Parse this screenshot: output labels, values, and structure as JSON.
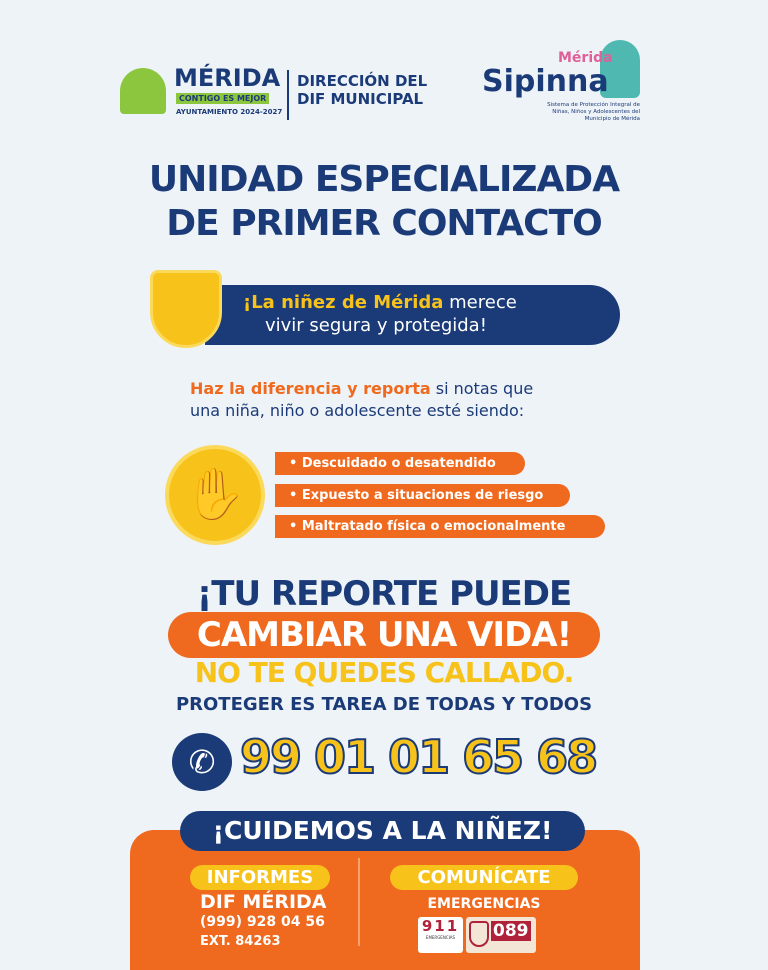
{
  "logos": {
    "merida": "MÉRIDA",
    "merida_tag": "CONTIGO ES MEJOR",
    "ayuntamiento": "AYUNTAMIENTO 2024-2027",
    "dif_line1": "DIRECCIÓN DEL",
    "dif_line2": "DIF MUNICIPAL",
    "sipinna_city": "Mérida",
    "sipinna": "Sipinna",
    "sipinna_desc": "Sistema de Protección Integral de Niñas, Niños y Adolescentes del Municipio de Mérida"
  },
  "title": {
    "line1": "UNIDAD ESPECIALIZADA",
    "line2": "DE PRIMER CONTACTO"
  },
  "banner": {
    "highlight": "¡La niñez de Mérida",
    "rest1": " merece",
    "line2": "vivir segura y protegida!"
  },
  "intro": {
    "highlight": "Haz la diferencia y reporta",
    "rest1": " si notas que",
    "line2": "una niña, niño o adolescente esté siendo:"
  },
  "bullets": [
    "• Descuidado o desatendido",
    "• Expuesto a situaciones de riesgo",
    "• Maltratado física o emocionalmente"
  ],
  "cta": {
    "line1": "¡TU REPORTE PUEDE",
    "line2": "CAMBIAR UNA VIDA!",
    "line3": "NO TE QUEDES CALLADO.",
    "line4": "PROTEGER ES TAREA DE TODAS Y TODOS"
  },
  "phone": "99 01 01 65 68",
  "footer": {
    "banner": "¡CUIDEMOS A LA NIÑEZ!",
    "left_label": "INFORMES",
    "left_name": "DIF MÉRIDA",
    "left_phone": "(999) 928 04 56",
    "left_ext": "EXT. 84263",
    "right_label": "COMUNÍCATE",
    "right_name": "EMERGENCIAS",
    "badge1": "911",
    "badge1_sub": "EMERGENCIAS",
    "badge2": "089"
  },
  "colors": {
    "navy": "#1b3a78",
    "orange": "#ef6a1e",
    "yellow": "#f7c21a",
    "bg": "#eef3f8"
  }
}
